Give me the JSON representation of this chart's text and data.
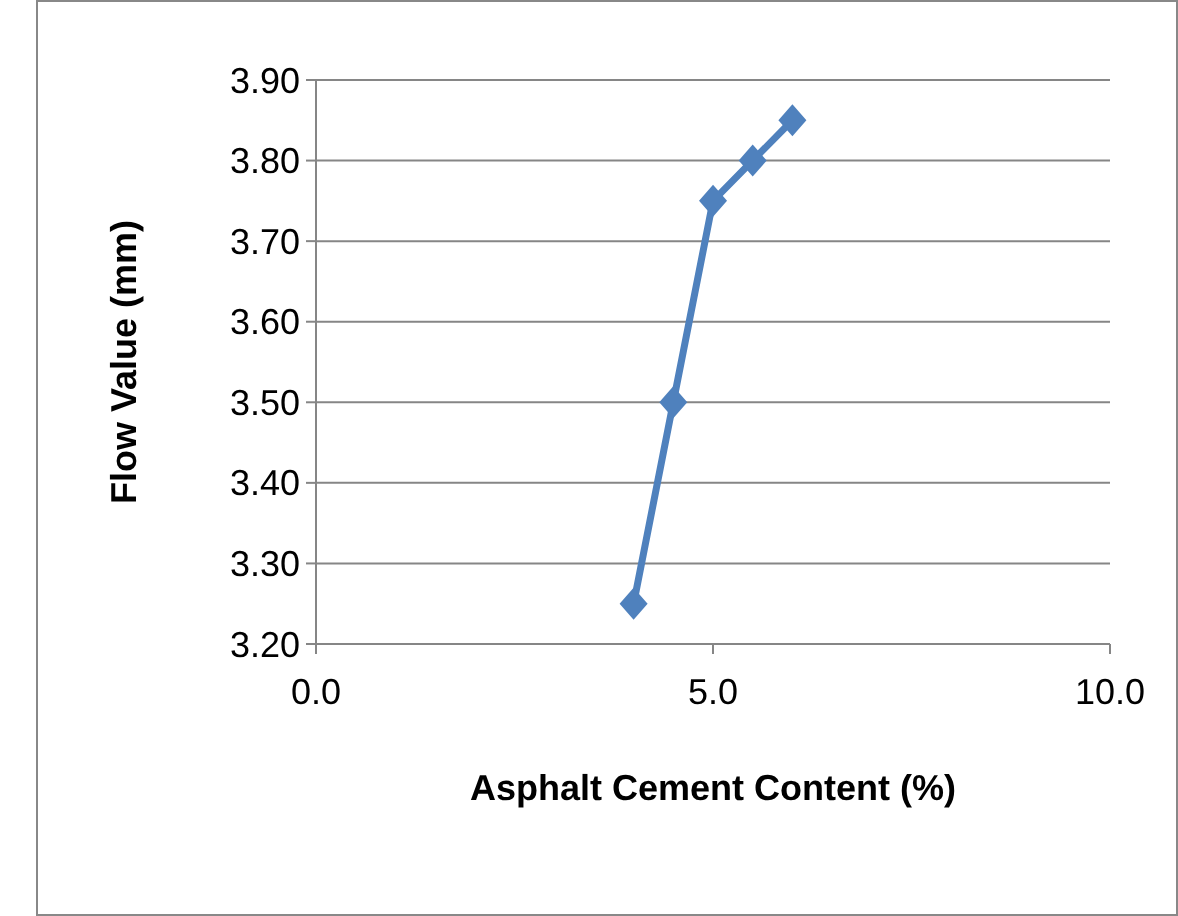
{
  "chart_data": {
    "type": "line",
    "xlabel": "Asphalt Cement Content (%)",
    "ylabel": "Flow Value (mm)",
    "x": [
      4.0,
      4.5,
      5.0,
      5.5,
      6.0
    ],
    "series": [
      {
        "color": "#4f81bd",
        "values": [
          3.25,
          3.5,
          3.75,
          3.8,
          3.85
        ]
      }
    ],
    "xlim": [
      0,
      10
    ],
    "xticks": [
      {
        "value": 0,
        "label": "0.0"
      },
      {
        "value": 5,
        "label": "5.0"
      },
      {
        "value": 10,
        "label": "10.0"
      }
    ],
    "ylim": [
      3.2,
      3.9
    ],
    "yticks": [
      {
        "value": 3.2,
        "label": "3.20"
      },
      {
        "value": 3.3,
        "label": "3.30"
      },
      {
        "value": 3.4,
        "label": "3.40"
      },
      {
        "value": 3.5,
        "label": "3.50"
      },
      {
        "value": 3.6,
        "label": "3.60"
      },
      {
        "value": 3.7,
        "label": "3.70"
      },
      {
        "value": 3.8,
        "label": "3.80"
      },
      {
        "value": 3.9,
        "label": "3.90"
      }
    ],
    "grid": "y",
    "marker": "diamond",
    "line_style": "solid"
  }
}
